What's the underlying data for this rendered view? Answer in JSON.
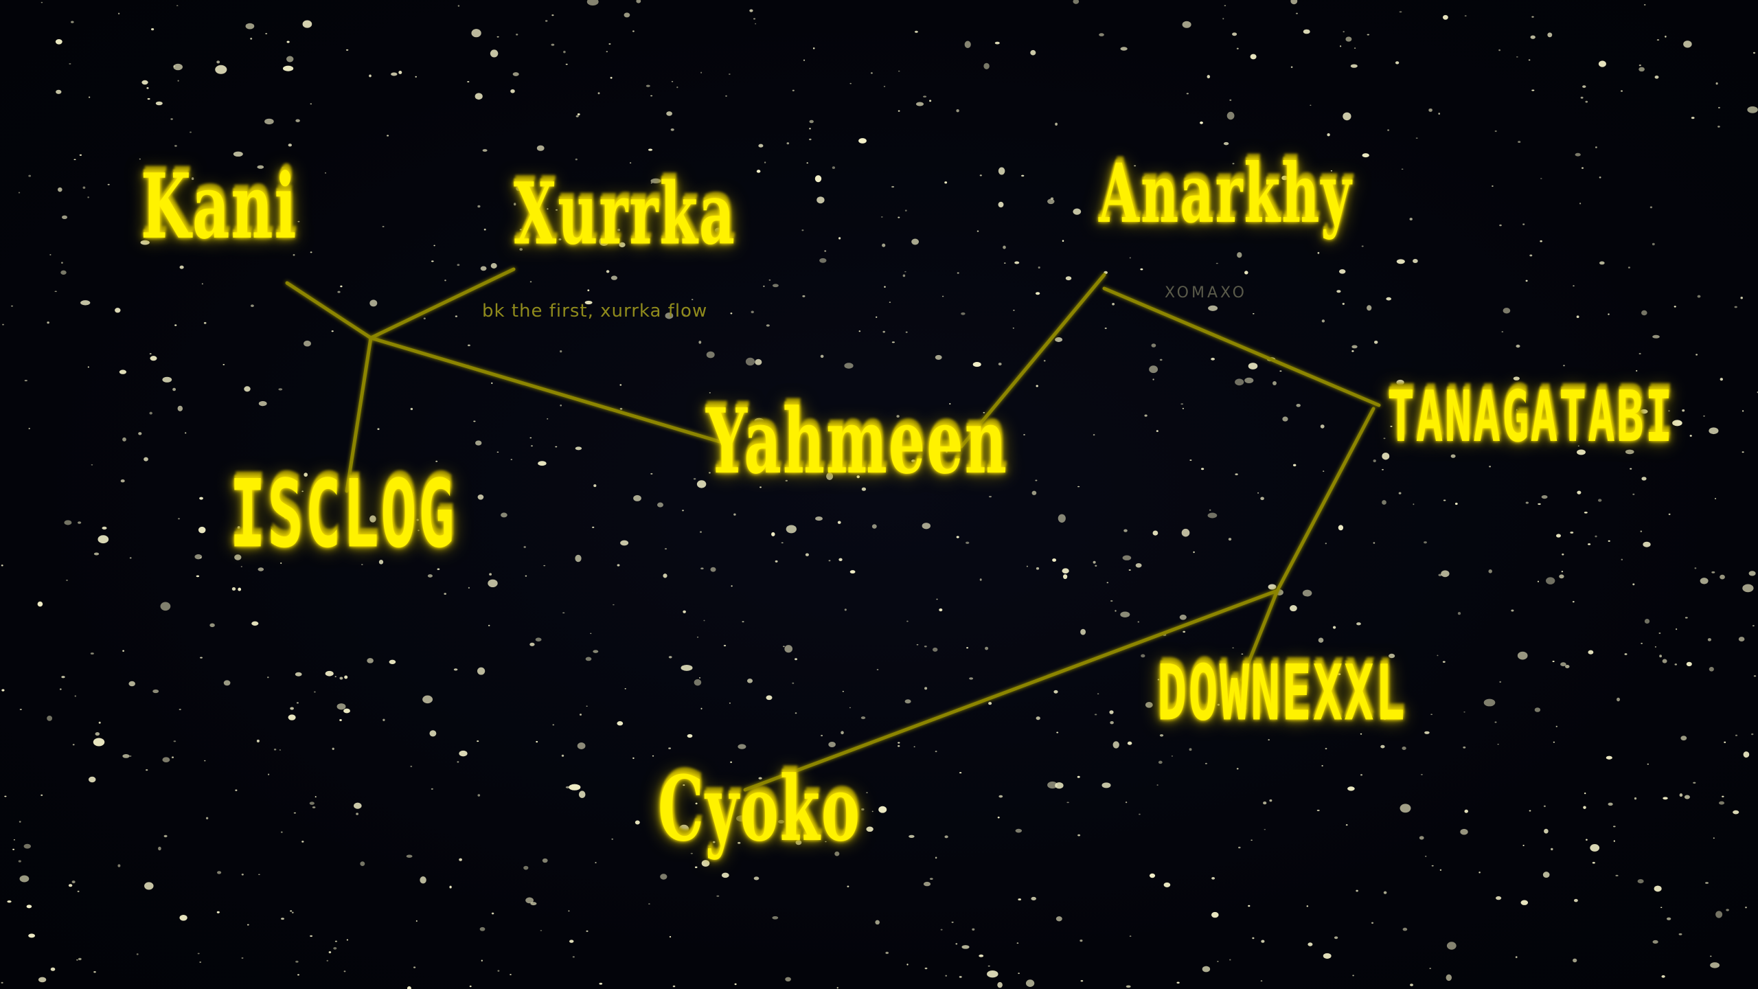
{
  "colors": {
    "background": "#03040a",
    "label": "#fff200",
    "glow": "#d8c400",
    "line": "#8c8500",
    "subtitle": "#8f8a1c",
    "star": "#f3f0c8"
  },
  "nodes": {
    "kani": {
      "label": "Kani"
    },
    "xurrka": {
      "label": "Xurrka",
      "subtitle": "bk the first, xurrka flow"
    },
    "anarkhy": {
      "label": "Anarkhy",
      "subtitle": "XOMAXO"
    },
    "yahmeen": {
      "label": "Yahmeen"
    },
    "isclog": {
      "label": "ISCLOG"
    },
    "tanagatabi": {
      "label": "TANAGATABI"
    },
    "downexxl": {
      "label": "DOWNEXXL"
    },
    "cyoko": {
      "label": "Cyoko"
    }
  }
}
